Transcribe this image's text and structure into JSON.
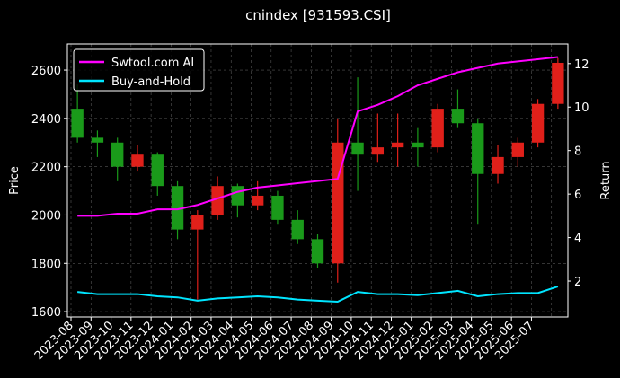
{
  "chart_data": {
    "type": "candlestick",
    "title": "cnindex [931593.CSI]",
    "y_label": "Price",
    "y2_label": "Return",
    "categories": [
      "2023-08",
      "2023-09",
      "2023-10",
      "2023-11",
      "2023-12",
      "2024-01",
      "2024-02",
      "2024-03",
      "2024-04",
      "2024-05",
      "2024-06",
      "2024-07",
      "2024-08",
      "2024-09",
      "2024-10",
      "2024-11",
      "2024-12",
      "2025-01",
      "2025-02",
      "2025-03",
      "2025-04",
      "2025-05",
      "2025-06",
      "2025-07",
      null
    ],
    "open": [
      2440,
      2320,
      2300,
      2200,
      2250,
      2120,
      1940,
      2000,
      2120,
      2040,
      2080,
      1980,
      1900,
      1800,
      2300,
      2250,
      2280,
      2300,
      2280,
      2440,
      2380,
      2170,
      2240,
      2300,
      2460
    ],
    "high": [
      2540,
      2350,
      2320,
      2290,
      2260,
      2140,
      2020,
      2160,
      2130,
      2140,
      2100,
      2020,
      1920,
      2400,
      2570,
      2420,
      2420,
      2360,
      2460,
      2520,
      2400,
      2290,
      2320,
      2480,
      2650
    ],
    "low": [
      2300,
      2240,
      2140,
      2180,
      2080,
      1900,
      1650,
      1980,
      1990,
      2020,
      1960,
      1880,
      1780,
      1720,
      2100,
      2220,
      2200,
      2200,
      2260,
      2360,
      1960,
      2130,
      2200,
      2280,
      2440
    ],
    "close": [
      2320,
      2300,
      2200,
      2250,
      2120,
      1940,
      2000,
      2120,
      2040,
      2080,
      1980,
      1900,
      1800,
      2300,
      2250,
      2280,
      2300,
      2280,
      2440,
      2380,
      2170,
      2240,
      2300,
      2460,
      2630
    ],
    "up_color": "#e0201a",
    "down_color": "#1a9a1a",
    "series": [
      {
        "name": "Swtool.com AI",
        "color": "#ff00ff",
        "axis": "y2",
        "values": [
          5.0,
          5.0,
          5.1,
          5.1,
          5.3,
          5.3,
          5.5,
          5.8,
          6.1,
          6.3,
          6.4,
          6.5,
          6.6,
          6.7,
          9.8,
          10.1,
          10.5,
          11.0,
          11.3,
          11.6,
          11.8,
          12.0,
          12.1,
          12.2,
          12.3
        ]
      },
      {
        "name": "Buy-and-Hold",
        "color": "#00e5ff",
        "axis": "y2",
        "values": [
          1.5,
          1.4,
          1.4,
          1.4,
          1.3,
          1.25,
          1.1,
          1.2,
          1.25,
          1.3,
          1.25,
          1.15,
          1.1,
          1.05,
          1.5,
          1.4,
          1.4,
          1.35,
          1.45,
          1.55,
          1.3,
          1.4,
          1.45,
          1.45,
          1.75
        ]
      }
    ],
    "ylim": [
      1578,
      2708
    ],
    "yticks": [
      1600,
      1800,
      2000,
      2200,
      2400,
      2600
    ],
    "y2lim": [
      0.35,
      12.9
    ],
    "y2ticks": [
      2,
      4,
      6,
      8,
      10,
      12
    ],
    "grid": true,
    "legend": "upper left"
  }
}
